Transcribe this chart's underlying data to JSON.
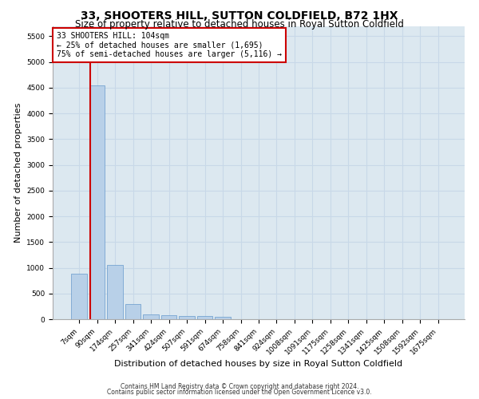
{
  "title": "33, SHOOTERS HILL, SUTTON COLDFIELD, B72 1HX",
  "subtitle": "Size of property relative to detached houses in Royal Sutton Coldfield",
  "xlabel": "Distribution of detached houses by size in Royal Sutton Coldfield",
  "ylabel": "Number of detached properties",
  "footnote1": "Contains HM Land Registry data © Crown copyright and database right 2024.",
  "footnote2": "Contains public sector information licensed under the Open Government Licence v3.0.",
  "bin_labels": [
    "7sqm",
    "90sqm",
    "174sqm",
    "257sqm",
    "341sqm",
    "424sqm",
    "507sqm",
    "591sqm",
    "674sqm",
    "758sqm",
    "841sqm",
    "924sqm",
    "1008sqm",
    "1091sqm",
    "1175sqm",
    "1258sqm",
    "1341sqm",
    "1425sqm",
    "1508sqm",
    "1592sqm",
    "1675sqm"
  ],
  "bar_values": [
    880,
    4550,
    1060,
    300,
    100,
    70,
    60,
    60,
    50,
    0,
    0,
    0,
    0,
    0,
    0,
    0,
    0,
    0,
    0,
    0,
    0
  ],
  "bar_color": "#b8d0e8",
  "bar_edge_color": "#6699cc",
  "property_line_color": "#cc0000",
  "annotation_text": "33 SHOOTERS HILL: 104sqm\n← 25% of detached houses are smaller (1,695)\n75% of semi-detached houses are larger (5,116) →",
  "annotation_box_color": "#ffffff",
  "annotation_box_edge_color": "#cc0000",
  "ylim": [
    0,
    5700
  ],
  "yticks": [
    0,
    500,
    1000,
    1500,
    2000,
    2500,
    3000,
    3500,
    4000,
    4500,
    5000,
    5500
  ],
  "grid_color": "#c8d8e8",
  "background_color": "#dce8f0",
  "title_fontsize": 10,
  "subtitle_fontsize": 8.5,
  "xlabel_fontsize": 8,
  "ylabel_fontsize": 8,
  "tick_fontsize": 6.5,
  "annotation_fontsize": 7,
  "footnote_fontsize": 5.5
}
